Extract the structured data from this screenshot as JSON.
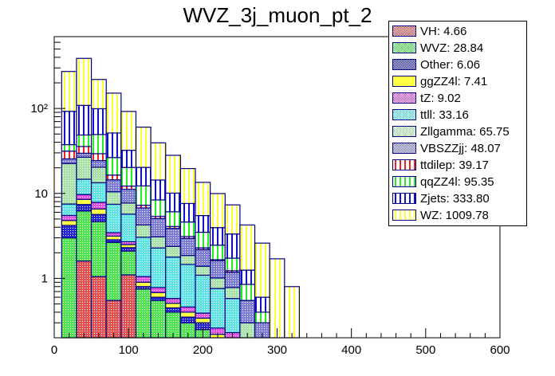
{
  "chart_data": {
    "type": "bar",
    "stacked": true,
    "title": "WVZ_3j_muon_pt_2",
    "xlabel": "",
    "ylabel": "",
    "xlim": [
      0,
      600
    ],
    "ylim": [
      0.2,
      700
    ],
    "yscale": "log",
    "x_ticks": [
      "0",
      "100",
      "200",
      "300",
      "400",
      "500",
      "600"
    ],
    "y_ticks": [
      {
        "value": 1,
        "label": "1"
      },
      {
        "value": 10,
        "label": "10"
      },
      {
        "value": 100,
        "label": "10²"
      }
    ],
    "legend_position": "top-right",
    "bin_width": 20,
    "bin_edges_start": 10,
    "series": [
      {
        "name": "VH",
        "total": "4.66",
        "color": "#d33",
        "pattern": "checker",
        "values": [
          0,
          1.6,
          1.05,
          0.55,
          1.1,
          0,
          0,
          0,
          0,
          0,
          0,
          0,
          0,
          0,
          0,
          0
        ]
      },
      {
        "name": "WVZ",
        "total": "28.84",
        "color": "#33dd33",
        "pattern": "checker",
        "values": [
          3.0,
          4.6,
          3.6,
          2.1,
          1.0,
          0.75,
          0.55,
          0.4,
          0.3,
          0.25,
          0.2,
          0.2,
          0,
          0,
          0,
          0
        ]
      },
      {
        "name": "Other",
        "total": "6.06",
        "color": "#0000cc",
        "pattern": "checker",
        "values": [
          1.2,
          1.2,
          1.0,
          0.2,
          0.2,
          0.05,
          0.05,
          0.05,
          0.05,
          0.05,
          0,
          0,
          0,
          0,
          0,
          0
        ]
      },
      {
        "name": "ggZZ4l",
        "total": "7.41",
        "color": "#ffff44",
        "pattern": "solid",
        "values": [
          0.6,
          1.1,
          0.9,
          0.3,
          0.2,
          0.1,
          0.08,
          0.06,
          0.05,
          0.04,
          0.02,
          0,
          0,
          0,
          0,
          0
        ]
      },
      {
        "name": "tZ",
        "total": "9.02",
        "color": "#dd33dd",
        "pattern": "checker",
        "values": [
          0.7,
          1.2,
          1.3,
          0.3,
          0.2,
          0.15,
          0.1,
          0.07,
          0.06,
          0.05,
          0.04,
          0.03,
          0,
          0,
          0,
          0
        ]
      },
      {
        "name": "ttll",
        "total": "33.16",
        "color": "#44e0e0",
        "pattern": "checker",
        "values": [
          2.0,
          5.0,
          5.5,
          4.0,
          3.0,
          2.0,
          1.5,
          1.2,
          1.0,
          0.7,
          0.5,
          0.35,
          0.2,
          0.1,
          0.05,
          0
        ]
      },
      {
        "name": "Zllgamma",
        "total": "65.75",
        "color": "#99dd99",
        "pattern": "checker",
        "values": [
          15,
          12,
          7,
          3,
          2,
          1.2,
          0.8,
          0.6,
          0.4,
          0.3,
          0.25,
          0.2,
          0.1,
          0.05,
          0,
          0
        ]
      },
      {
        "name": "VBSZZjj",
        "total": "48.07",
        "color": "#6666cc",
        "pattern": "checker",
        "values": [
          3,
          3,
          4,
          4,
          3.5,
          2.5,
          2,
          1.5,
          1.1,
          0.8,
          0.6,
          0.4,
          0.25,
          0.15,
          0.05,
          0
        ]
      },
      {
        "name": "ttdilep",
        "total": "39.17",
        "color": "#ee2222",
        "pattern": "vlines",
        "values": [
          6,
          6,
          5,
          2,
          1,
          0.5,
          0.3,
          0.2,
          0.15,
          0.1,
          0.05,
          0.05,
          0,
          0,
          0,
          0
        ]
      },
      {
        "name": "qqZZ4l",
        "total": "95.35",
        "color": "#22ee22",
        "pattern": "vlines",
        "values": [
          6,
          13,
          20,
          10,
          8,
          5,
          3,
          2,
          1.5,
          1.2,
          0.8,
          0.5,
          0.3,
          0.1,
          0.05,
          0
        ]
      },
      {
        "name": "Zjets",
        "total": "333.80",
        "color": "#1111cc",
        "pattern": "vlines",
        "values": [
          55,
          60,
          50,
          25,
          12,
          8,
          6,
          4,
          3,
          2,
          1.5,
          1.6,
          0.4,
          0.2,
          0.05,
          0
        ]
      },
      {
        "name": "WZ",
        "total": "1009.78",
        "color": "#ffff33",
        "pattern": "vlines",
        "values": [
          180,
          280,
          120,
          100,
          60,
          40,
          25,
          18,
          12,
          8,
          6,
          4,
          3,
          2,
          1.5,
          0.8
        ]
      }
    ]
  }
}
